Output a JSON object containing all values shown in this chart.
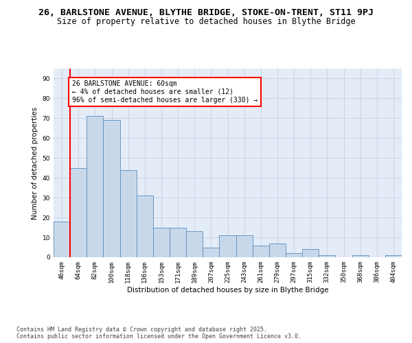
{
  "title_line1": "26, BARLSTONE AVENUE, BLYTHE BRIDGE, STOKE-ON-TRENT, ST11 9PJ",
  "title_line2": "Size of property relative to detached houses in Blythe Bridge",
  "xlabel": "Distribution of detached houses by size in Blythe Bridge",
  "ylabel": "Number of detached properties",
  "categories": [
    "46sqm",
    "64sqm",
    "82sqm",
    "100sqm",
    "118sqm",
    "136sqm",
    "153sqm",
    "171sqm",
    "189sqm",
    "207sqm",
    "225sqm",
    "243sqm",
    "261sqm",
    "279sqm",
    "297sqm",
    "315sqm",
    "332sqm",
    "350sqm",
    "368sqm",
    "386sqm",
    "404sqm"
  ],
  "values": [
    18,
    45,
    71,
    69,
    44,
    31,
    15,
    15,
    13,
    5,
    11,
    11,
    6,
    7,
    2,
    4,
    1,
    0,
    1,
    0,
    1
  ],
  "bar_color": "#c8d8eb",
  "bar_edge_color": "#5b8db8",
  "red_line_x": 0.5,
  "annotation_text": "26 BARLSTONE AVENUE: 60sqm\n← 4% of detached houses are smaller (12)\n96% of semi-detached houses are larger (330) →",
  "annotation_box_color": "white",
  "annotation_box_edge_color": "red",
  "ylim": [
    0,
    95
  ],
  "yticks": [
    0,
    10,
    20,
    30,
    40,
    50,
    60,
    70,
    80,
    90
  ],
  "grid_color": "#c8d4e8",
  "bg_color": "#e4ecf7",
  "footer_text": "Contains HM Land Registry data © Crown copyright and database right 2025.\nContains public sector information licensed under the Open Government Licence v3.0.",
  "title_fontsize": 9.5,
  "subtitle_fontsize": 8.5,
  "axis_label_fontsize": 7.5,
  "tick_fontsize": 6.5,
  "annotation_fontsize": 7,
  "footer_fontsize": 6
}
